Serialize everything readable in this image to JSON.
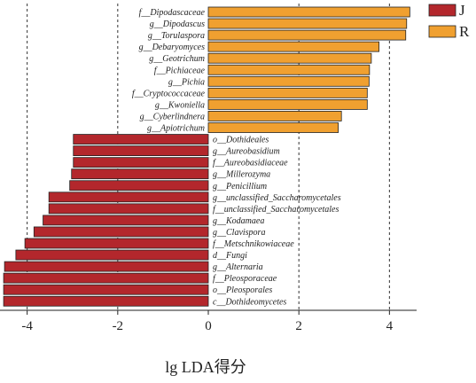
{
  "chart_data": {
    "type": "bar",
    "orientation": "horizontal",
    "xlabel": "lg LDA得分",
    "xlim": [
      -4.6,
      4.6
    ],
    "xticks": [
      -4,
      -2,
      0,
      2,
      4
    ],
    "xtick_labels": [
      "-4",
      "-2",
      "0",
      "2",
      "4"
    ],
    "grid": "vertical dashed",
    "legend_position": "top-right",
    "series": [
      {
        "name": "J",
        "color": "#b3272c"
      },
      {
        "name": "R",
        "color": "#f0a030"
      }
    ],
    "bars": [
      {
        "label": "f__Dipodascaceae",
        "value": 4.45,
        "group": "R"
      },
      {
        "label": "g__Dipodascus",
        "value": 4.38,
        "group": "R"
      },
      {
        "label": "g__Torulaspora",
        "value": 4.36,
        "group": "R"
      },
      {
        "label": "g__Debaryomyces",
        "value": 3.77,
        "group": "R"
      },
      {
        "label": "g__Geotrichum",
        "value": 3.6,
        "group": "R"
      },
      {
        "label": "f__Pichiaceae",
        "value": 3.56,
        "group": "R"
      },
      {
        "label": "g__Pichia",
        "value": 3.55,
        "group": "R"
      },
      {
        "label": "f__Cryptococcaceae",
        "value": 3.51,
        "group": "R"
      },
      {
        "label": "g__Kwoniella",
        "value": 3.51,
        "group": "R"
      },
      {
        "label": "g__Cyberlindnera",
        "value": 2.94,
        "group": "R"
      },
      {
        "label": "g__Apiotrichum",
        "value": 2.87,
        "group": "R"
      },
      {
        "label": "o__Dothideales",
        "value": -2.98,
        "group": "J"
      },
      {
        "label": "g__Aureobasidium",
        "value": -2.98,
        "group": "J"
      },
      {
        "label": "f__Aureobasidiaceae",
        "value": -2.98,
        "group": "J"
      },
      {
        "label": "g__Millerozyma",
        "value": -3.02,
        "group": "J"
      },
      {
        "label": "g__Penicillium",
        "value": -3.06,
        "group": "J"
      },
      {
        "label": "g__unclassified_Saccharomycetales",
        "value": -3.52,
        "group": "J"
      },
      {
        "label": "f__unclassified_Saccharomycetales",
        "value": -3.52,
        "group": "J"
      },
      {
        "label": "g__Kodamaea",
        "value": -3.65,
        "group": "J"
      },
      {
        "label": "g__Clavispora",
        "value": -3.85,
        "group": "J"
      },
      {
        "label": "f__Metschnikowiaceae",
        "value": -4.05,
        "group": "J"
      },
      {
        "label": "d__Fungi",
        "value": -4.25,
        "group": "J"
      },
      {
        "label": "g__Alternaria",
        "value": -4.5,
        "group": "J"
      },
      {
        "label": "f__Pleosporaceae",
        "value": -4.52,
        "group": "J"
      },
      {
        "label": "o__Pleosporales",
        "value": -4.52,
        "group": "J"
      },
      {
        "label": "c__Dothideomycetes",
        "value": -4.52,
        "group": "J"
      }
    ]
  }
}
